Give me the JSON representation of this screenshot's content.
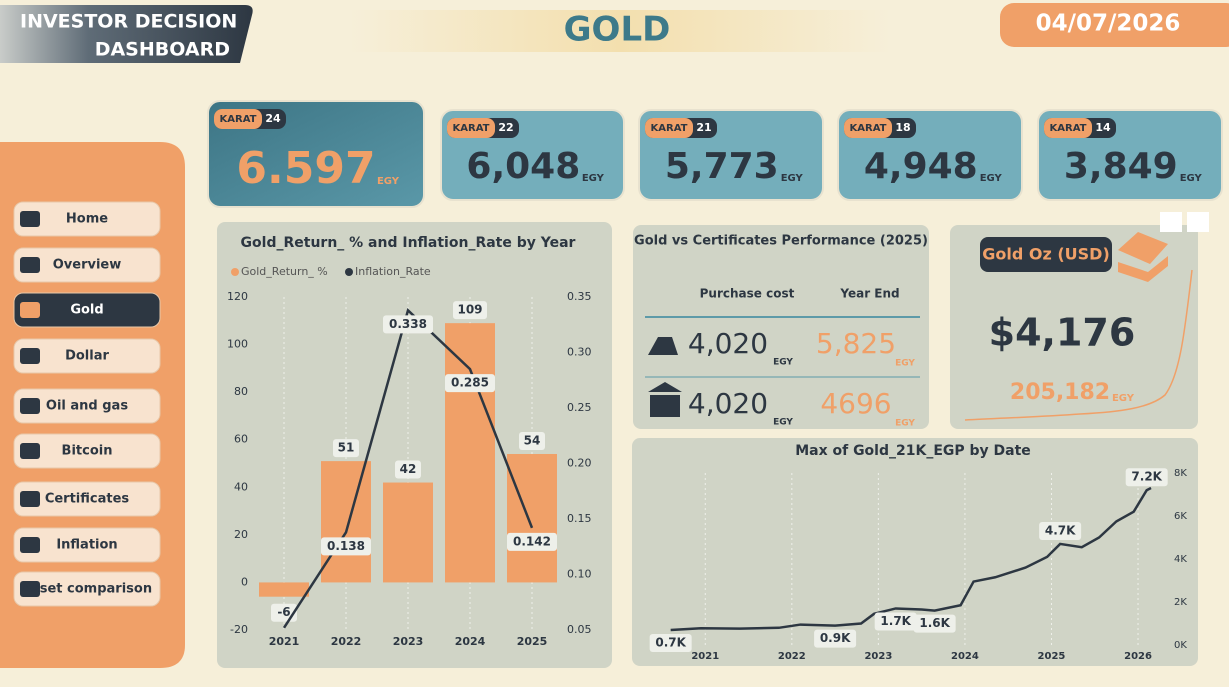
{
  "header": {
    "title_lines": [
      "INVESTOR DECISION",
      "DASHBOARD"
    ],
    "page": "GOLD",
    "date": "04/07/2026"
  },
  "nav": {
    "items": [
      "Home",
      "Overview",
      "Gold",
      "Dollar",
      "Oil and gas",
      "Bitcoin",
      "Certificates",
      "Inflation",
      "Asset comparison"
    ],
    "active": 2
  },
  "karats": [
    {
      "label": "KARAT",
      "karat": "24",
      "price": "6.597",
      "unit": "EGY"
    },
    {
      "label": "KARAT",
      "karat": "22",
      "price": "6,048",
      "unit": "EGY"
    },
    {
      "label": "KARAT",
      "karat": "21",
      "price": "5,773",
      "unit": "EGY"
    },
    {
      "label": "KARAT",
      "karat": "18",
      "price": "4,948",
      "unit": "EGY"
    },
    {
      "label": "KARAT",
      "karat": "14",
      "price": "3,849",
      "unit": "EGY"
    }
  ],
  "certificates": {
    "title": "Gold vs Certificates Performance (2025)",
    "headers": [
      "Purchase cost",
      "Year End"
    ],
    "rows": [
      [
        "4,020",
        "EGY",
        "5,825",
        "EGY"
      ],
      [
        "4,020",
        "EGY",
        "4696",
        "EGY"
      ]
    ]
  },
  "gold_oz": {
    "title": "Gold Oz (USD)",
    "price": "$4,176",
    "egp": "205,182",
    "unit": "EGY"
  },
  "chart_data": [
    {
      "type": "bar",
      "title": "Gold_Return_ % and Inflation_Rate by Year",
      "categories": [
        "2021",
        "2022",
        "2023",
        "2024",
        "2025"
      ],
      "series": [
        {
          "name": "Gold_Return_ %",
          "color": "#f0a068",
          "values": [
            -6,
            51,
            42,
            109,
            54
          ]
        },
        {
          "name": "Inflation_Rate",
          "color": "#2d3742",
          "axis": "y2",
          "values": [
            0.052,
            0.138,
            0.338,
            0.285,
            0.142
          ],
          "value_labels": [
            null,
            "0.138",
            "0.338",
            "0.285",
            "0.142"
          ]
        }
      ],
      "ylim": [
        -20,
        120
      ],
      "yticks": [
        -20,
        0,
        20,
        40,
        60,
        80,
        100,
        120
      ],
      "y2lim": [
        0.05,
        0.35
      ],
      "y2ticks": [
        0.05,
        {
          "value": 0.1,
          "label": "0.10"
        },
        0.15,
        {
          "value": 0.2,
          "label": "0.20"
        },
        0.25,
        {
          "value": 0.3,
          "label": "0.30"
        },
        0.35
      ],
      "grid": true
    },
    {
      "type": "line",
      "title": "Max of Gold_21K_EGP by Date",
      "x": [
        2020.6,
        2020.95,
        2021.4,
        2021.85,
        2022.1,
        2022.5,
        2022.8,
        2022.95,
        2023.2,
        2023.5,
        2023.65,
        2023.95,
        2024.1,
        2024.35,
        2024.7,
        2024.95,
        2025.1,
        2025.35,
        2025.55,
        2025.75,
        2025.95,
        2026.1,
        2026.15
      ],
      "series": [
        {
          "name": "Max of Gold_21K_EGP",
          "color": "#2d3742",
          "values": [
            700,
            780,
            760,
            800,
            950,
            900,
            1000,
            1450,
            1700,
            1650,
            1600,
            1850,
            2950,
            3150,
            3600,
            4100,
            4700,
            4550,
            5000,
            5750,
            6200,
            7200,
            7300
          ],
          "value_labels": [
            "0.7K",
            null,
            null,
            null,
            null,
            "0.9K",
            null,
            null,
            "1.7K",
            null,
            "1.6K",
            null,
            null,
            null,
            null,
            null,
            "4.7K",
            null,
            null,
            null,
            null,
            "7.2K",
            null
          ]
        }
      ],
      "xlim": [
        2020.5,
        2026.3
      ],
      "xticks": [
        2021,
        2022,
        2023,
        2024,
        2025,
        2026
      ],
      "ylim": [
        0,
        8000
      ],
      "yticks": [
        {
          "value": 0,
          "label": "0K"
        },
        {
          "value": 2000,
          "label": "2K"
        },
        {
          "value": 4000,
          "label": "4K"
        },
        {
          "value": 6000,
          "label": "6K"
        },
        {
          "value": 8000,
          "label": "8K"
        }
      ],
      "grid": true
    }
  ]
}
